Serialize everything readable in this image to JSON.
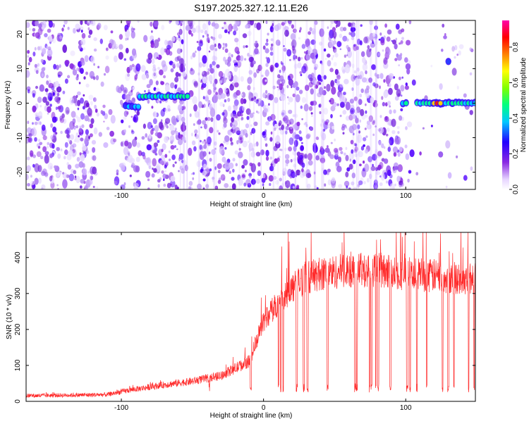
{
  "title": "S197.2025.327.12.11.E26",
  "chart_data": [
    {
      "type": "heatmap",
      "xlabel": "Height of straight line (km)",
      "ylabel": "Frequency (Hz)",
      "xlim": [
        -167,
        149
      ],
      "ylim": [
        -25,
        24
      ],
      "xticks": [
        -100,
        0,
        100
      ],
      "yticks": [
        -20,
        -10,
        0,
        10,
        20
      ],
      "colorbar": {
        "label": "Normalized spectral amplitude",
        "range": [
          0.0,
          0.95
        ],
        "ticks": [
          0.0,
          0.2,
          0.4,
          0.6,
          0.8
        ],
        "colors": [
          "#ffffff",
          "#e9d5ff",
          "#8a2be2",
          "#2200ff",
          "#00c0ff",
          "#00ff80",
          "#80ff00",
          "#ffff00",
          "#ff8000",
          "#ff0000",
          "#ff00ff"
        ]
      },
      "signal_segments": [
        {
          "x": [
            -97,
            -87
          ],
          "freq": -1,
          "amplitude": 0.25
        },
        {
          "x": [
            -87,
            -53
          ],
          "freq": 2,
          "amplitude": 0.35
        },
        {
          "x": [
            98,
            102
          ],
          "freq": 0,
          "amplitude": 0.3
        },
        {
          "x": [
            108,
            134
          ],
          "freq": 0,
          "amplitude": 0.45
        },
        {
          "x": [
            120,
            125
          ],
          "freq": 0,
          "amplitude": 0.85
        },
        {
          "x": [
            133,
            149
          ],
          "freq": 0,
          "amplitude": 0.35
        },
        {
          "x": [
            130,
            132
          ],
          "freq": 12,
          "amplitude": 0.2
        }
      ]
    },
    {
      "type": "line",
      "xlabel": "Height of straight line (km)",
      "ylabel": "SNR (10 * v/v)",
      "xlim": [
        -167,
        149
      ],
      "ylim": [
        0,
        470
      ],
      "xticks": [
        -100,
        0,
        100
      ],
      "yticks": [
        0,
        100,
        200,
        300,
        400
      ],
      "color": "#ff2a2a",
      "trend": {
        "x": [
          -167,
          -110,
          -95,
          -70,
          -50,
          -30,
          -10,
          0,
          10,
          20,
          30,
          40,
          60,
          80,
          100,
          120,
          149
        ],
        "snr": [
          15,
          18,
          30,
          45,
          55,
          70,
          110,
          220,
          270,
          310,
          340,
          350,
          360,
          360,
          350,
          345,
          335
        ]
      },
      "dropout_floor": 25
    }
  ]
}
